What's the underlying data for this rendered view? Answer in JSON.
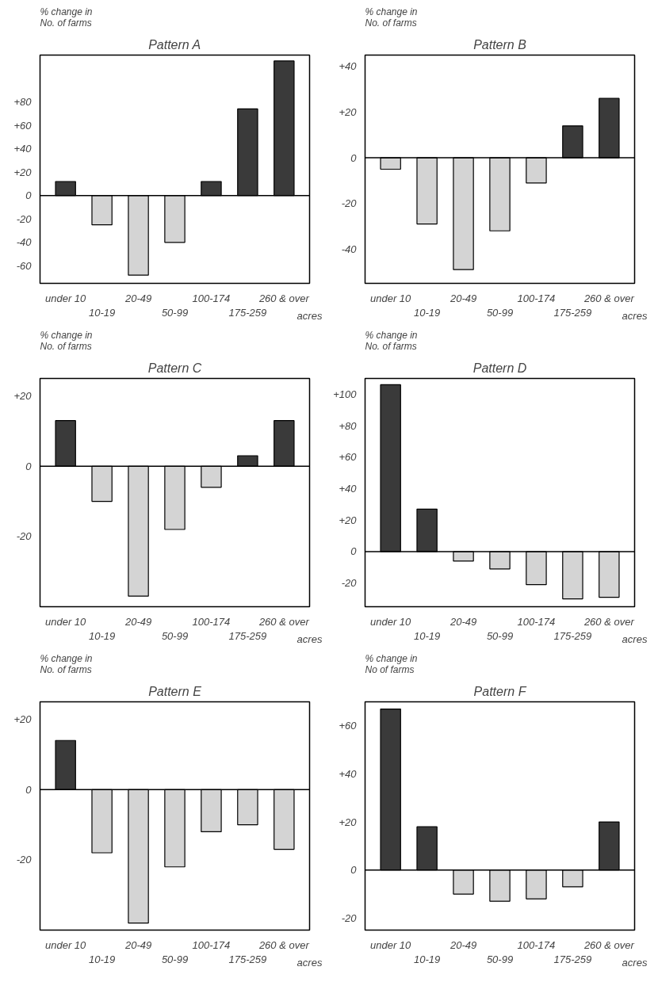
{
  "chart_data": [
    {
      "type": "bar",
      "title": "Pattern A",
      "ylabel": "% change in\nNo. of farms",
      "xlabel": "acres",
      "categories": [
        "under 10",
        "10-19",
        "20-49",
        "50-99",
        "100-174",
        "175-259",
        "260 & over"
      ],
      "values": [
        12,
        -25,
        -68,
        -40,
        12,
        74,
        115
      ],
      "colors": [
        "#3a3a3a",
        "#d4d4d4",
        "#d4d4d4",
        "#d4d4d4",
        "#3a3a3a",
        "#3a3a3a",
        "#3a3a3a"
      ],
      "ylim": [
        -75,
        120
      ],
      "ref_lines": [
        {
          "axis": "y",
          "value": 0
        }
      ],
      "yticks": [
        {
          "value": 80,
          "label": "+80"
        },
        {
          "value": 60,
          "label": "+60"
        },
        {
          "value": 40,
          "label": "+40"
        },
        {
          "value": 20,
          "label": "+20"
        },
        0,
        -20,
        -40,
        -60
      ],
      "grid": false
    },
    {
      "type": "bar",
      "title": "Pattern B",
      "ylabel": "% change in\nNo. of farms",
      "xlabel": "acres",
      "categories": [
        "under 10",
        "10-19",
        "20-49",
        "50-99",
        "100-174",
        "175-259",
        "260 & over"
      ],
      "values": [
        -5,
        -29,
        -49,
        -32,
        -11,
        14,
        26
      ],
      "colors": [
        "#d4d4d4",
        "#d4d4d4",
        "#d4d4d4",
        "#d4d4d4",
        "#d4d4d4",
        "#3a3a3a",
        "#3a3a3a"
      ],
      "ylim": [
        -55,
        45
      ],
      "ref_lines": [
        {
          "axis": "y",
          "value": 0
        }
      ],
      "yticks": [
        {
          "value": 40,
          "label": "+40"
        },
        {
          "value": 20,
          "label": "+20"
        },
        0,
        -20,
        -40
      ],
      "grid": false
    },
    {
      "type": "bar",
      "title": "Pattern C",
      "ylabel": "% change in\nNo. of farms",
      "xlabel": "acres",
      "categories": [
        "under 10",
        "10-19",
        "20-49",
        "50-99",
        "100-174",
        "175-259",
        "260 & over"
      ],
      "values": [
        13,
        -10,
        -37,
        -18,
        -6,
        3,
        13
      ],
      "colors": [
        "#3a3a3a",
        "#d4d4d4",
        "#d4d4d4",
        "#d4d4d4",
        "#d4d4d4",
        "#3a3a3a",
        "#3a3a3a"
      ],
      "ylim": [
        -40,
        25
      ],
      "ref_lines": [
        {
          "axis": "y",
          "value": 0
        }
      ],
      "yticks": [
        {
          "value": 20,
          "label": "+20"
        },
        0,
        -20
      ],
      "grid": false
    },
    {
      "type": "bar",
      "title": "Pattern D",
      "ylabel": "% change in\nNo. of farms",
      "xlabel": "acres",
      "categories": [
        "under 10",
        "10-19",
        "20-49",
        "50-99",
        "100-174",
        "175-259",
        "260 & over"
      ],
      "values": [
        106,
        27,
        -6,
        -11,
        -21,
        -30,
        -29
      ],
      "colors": [
        "#3a3a3a",
        "#3a3a3a",
        "#d4d4d4",
        "#d4d4d4",
        "#d4d4d4",
        "#d4d4d4",
        "#d4d4d4"
      ],
      "ylim": [
        -35,
        110
      ],
      "ref_lines": [
        {
          "axis": "y",
          "value": 0
        }
      ],
      "yticks": [
        {
          "value": 100,
          "label": "+100"
        },
        {
          "value": 80,
          "label": "+80"
        },
        {
          "value": 60,
          "label": "+60"
        },
        {
          "value": 40,
          "label": "+40"
        },
        {
          "value": 20,
          "label": "+20"
        },
        0,
        -20
      ],
      "grid": false
    },
    {
      "type": "bar",
      "title": "Pattern E",
      "ylabel": "% change in\nNo. of farms",
      "xlabel": "acres",
      "categories": [
        "under 10",
        "10-19",
        "20-49",
        "50-99",
        "100-174",
        "175-259",
        "260 & over"
      ],
      "values": [
        14,
        -18,
        -38,
        -22,
        -12,
        -10,
        -17
      ],
      "colors": [
        "#3a3a3a",
        "#d4d4d4",
        "#d4d4d4",
        "#d4d4d4",
        "#d4d4d4",
        "#d4d4d4",
        "#d4d4d4"
      ],
      "ylim": [
        -40,
        25
      ],
      "ref_lines": [
        {
          "axis": "y",
          "value": 0
        }
      ],
      "yticks": [
        {
          "value": 20,
          "label": "+20"
        },
        0,
        -20
      ],
      "grid": false
    },
    {
      "type": "bar",
      "title": "Pattern F",
      "ylabel": "% change in\nNo of farms",
      "xlabel": "acres",
      "categories": [
        "under 10",
        "10-19",
        "20-49",
        "50-99",
        "100-174",
        "175-259",
        "260 & over"
      ],
      "values": [
        67,
        18,
        -10,
        -13,
        -12,
        -7,
        20
      ],
      "colors": [
        "#3a3a3a",
        "#3a3a3a",
        "#d4d4d4",
        "#d4d4d4",
        "#d4d4d4",
        "#d4d4d4",
        "#3a3a3a"
      ],
      "ylim": [
        -25,
        70
      ],
      "ref_lines": [
        {
          "axis": "y",
          "value": 0
        }
      ],
      "yticks": [
        {
          "value": 60,
          "label": "+60"
        },
        {
          "value": 40,
          "label": "+40"
        },
        {
          "value": 20,
          "label": "+20"
        },
        0,
        -20
      ],
      "grid": false
    }
  ]
}
